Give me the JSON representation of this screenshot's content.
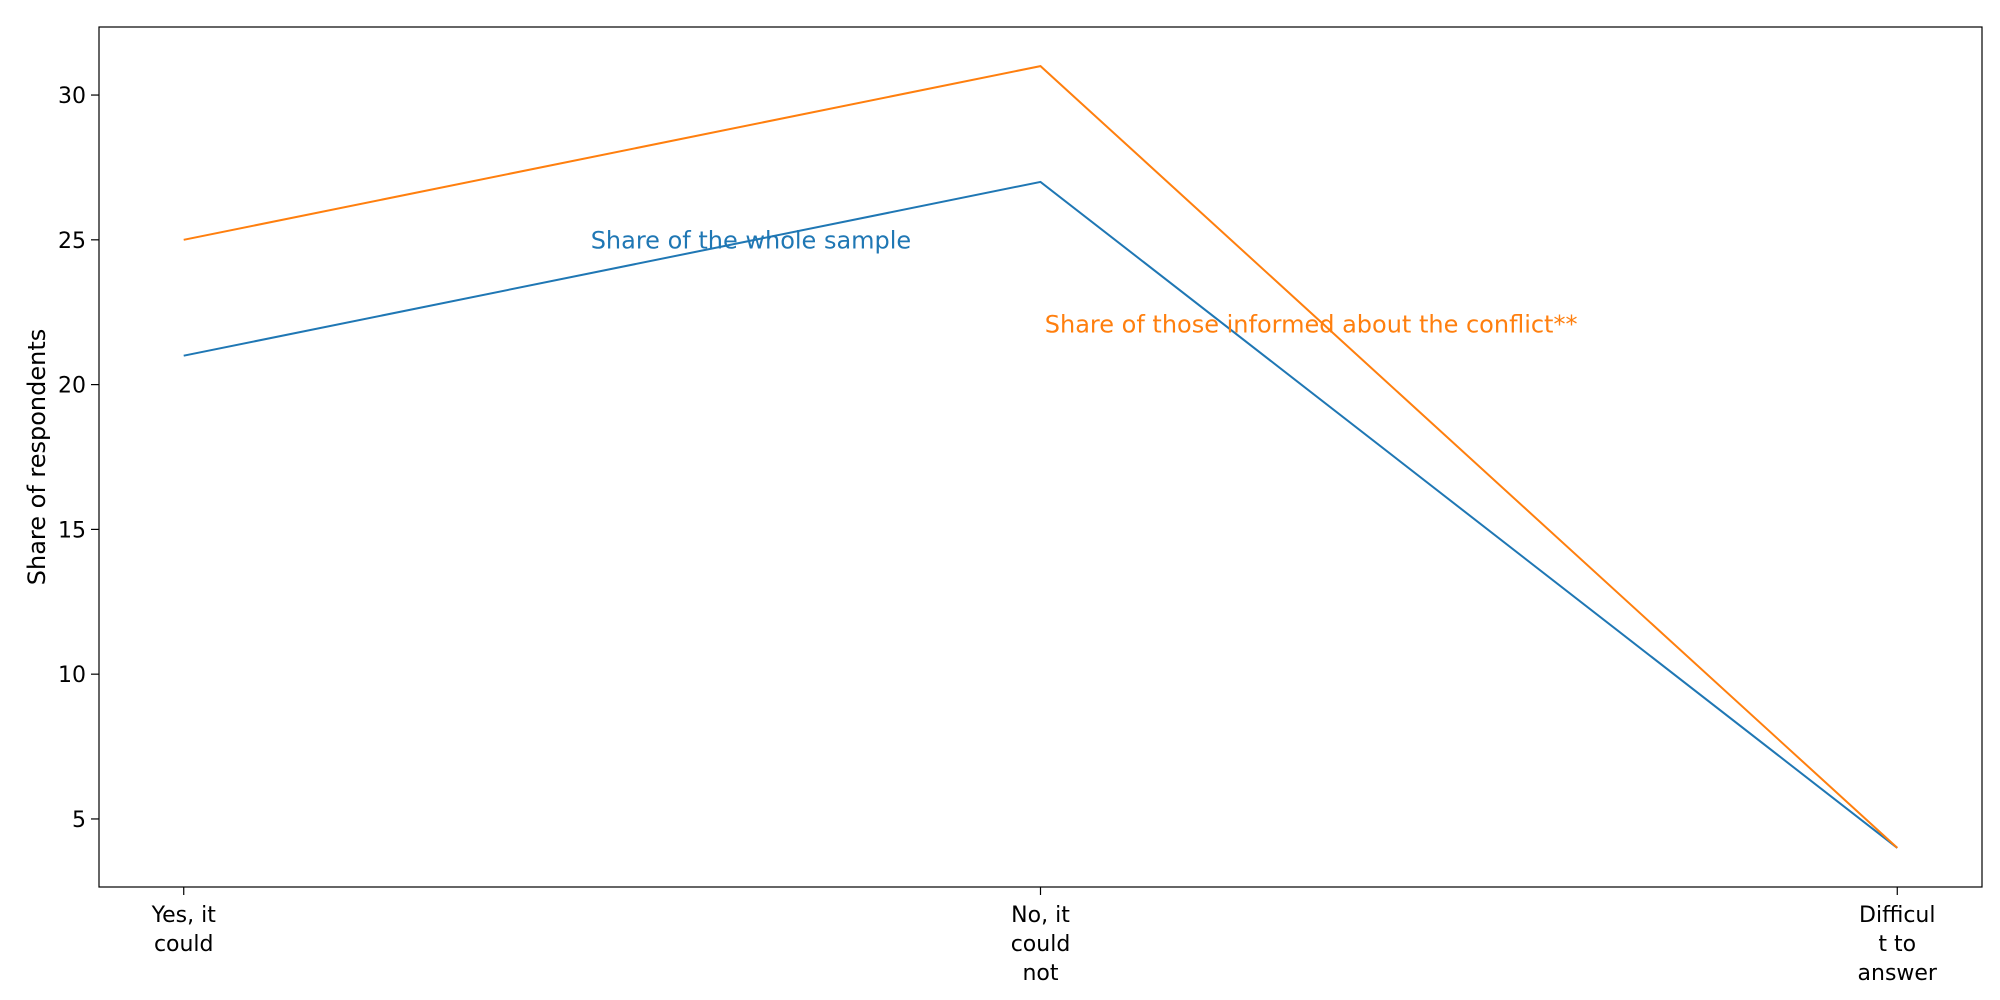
{
  "chart_data": {
    "type": "line",
    "title": "",
    "xlabel": "",
    "ylabel": "Share of respondents",
    "categories": [
      [
        "Yes, it",
        "could"
      ],
      [
        "No, it",
        "could",
        "not"
      ],
      [
        "Difficul",
        "t to",
        "answer"
      ]
    ],
    "series": [
      {
        "name": "Share of the whole sample",
        "color": "#1f77b4",
        "values": [
          21,
          27,
          4
        ]
      },
      {
        "name": "Share of those informed about the conflict**",
        "color": "#ff7f0e",
        "values": [
          25,
          31,
          4
        ]
      }
    ],
    "yticks": [
      5,
      10,
      15,
      20,
      25,
      30
    ],
    "ylim": [
      2.65,
      32.35
    ],
    "grid": false,
    "legend": "inline labels"
  }
}
